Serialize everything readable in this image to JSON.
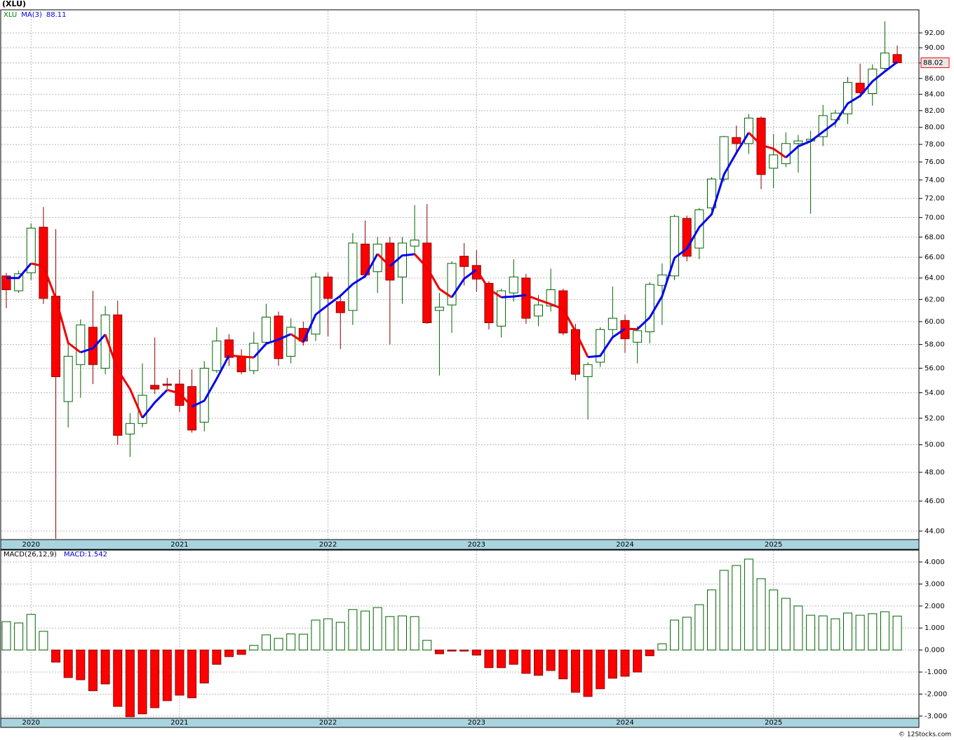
{
  "chart_data": [
    {
      "type": "candlestick",
      "title": "(XLU)",
      "categories": [
        null,
        null,
        "2020",
        null,
        null,
        null,
        null,
        null,
        null,
        null,
        null,
        null,
        null,
        null,
        "2021",
        null,
        null,
        null,
        null,
        null,
        null,
        null,
        null,
        null,
        null,
        null,
        "2022",
        null,
        null,
        null,
        null,
        null,
        null,
        null,
        null,
        null,
        null,
        null,
        "2023",
        null,
        null,
        null,
        null,
        null,
        null,
        null,
        null,
        null,
        null,
        null,
        "2024",
        null,
        null,
        null,
        null,
        null,
        null,
        null,
        null,
        null,
        null,
        null,
        "2025",
        null,
        null,
        null,
        null,
        null,
        null,
        null,
        null,
        null,
        null
      ],
      "series": [
        {
          "name": "XLU",
          "up_color": "#006400",
          "down_color": "#ff0000",
          "open": [
            64.2,
            62.8,
            64.5,
            69.0,
            62.3,
            53.3,
            56.3,
            59.5,
            56.0,
            60.6,
            50.8,
            51.6,
            54.6,
            54.7,
            54.7,
            54.5,
            51.7,
            55.8,
            58.4,
            57.0,
            55.8,
            58.2,
            60.5,
            57.0,
            59.4,
            58.9,
            64.1,
            61.8,
            61.0,
            67.3,
            64.6,
            67.4,
            64.1,
            67.1,
            67.4,
            61.0,
            61.5,
            66.1,
            65.2,
            63.5,
            59.6,
            62.6,
            64.0,
            60.5,
            61.4,
            62.8,
            59.3,
            55.3,
            56.5,
            59.3,
            60.1,
            58.2,
            59.1,
            63.3,
            64.2,
            69.9,
            66.9,
            71.0,
            74.1,
            78.8,
            78.1,
            81.1,
            75.3,
            75.8,
            78.1,
            78.4,
            78.9,
            80.9,
            81.6,
            85.4,
            84.1,
            87.3,
            89.1
          ],
          "high": [
            64.5,
            64.7,
            69.4,
            71.1,
            68.8,
            58.3,
            60.2,
            62.8,
            61.4,
            61.9,
            52.4,
            56.4,
            58.6,
            55.2,
            55.9,
            55.9,
            56.6,
            59.5,
            58.9,
            57.6,
            59.1,
            61.6,
            60.9,
            60.3,
            60.0,
            64.5,
            64.5,
            62.5,
            68.4,
            69.7,
            68.0,
            68.0,
            68.0,
            71.3,
            71.4,
            62.6,
            65.6,
            67.4,
            66.7,
            63.7,
            63.0,
            65.8,
            64.4,
            62.4,
            64.9,
            63.0,
            59.8,
            56.5,
            59.5,
            63.2,
            60.6,
            59.6,
            63.6,
            65.4,
            70.3,
            70.2,
            71.0,
            74.3,
            79.0,
            80.2,
            81.6,
            81.3,
            79.2,
            79.4,
            79.1,
            79.6,
            82.7,
            82.1,
            86.2,
            87.9,
            87.8,
            93.6,
            90.3
          ],
          "low": [
            61.2,
            62.6,
            63.8,
            61.6,
            43.5,
            51.3,
            53.6,
            54.7,
            55.5,
            50.0,
            49.1,
            51.3,
            53.9,
            54.3,
            52.5,
            50.9,
            51.0,
            55.6,
            56.2,
            55.5,
            55.5,
            57.9,
            56.2,
            56.4,
            57.9,
            58.3,
            58.7,
            57.6,
            59.7,
            64.0,
            62.6,
            58.0,
            61.6,
            66.3,
            59.8,
            55.4,
            59.0,
            63.3,
            62.7,
            59.3,
            58.6,
            61.8,
            59.8,
            59.6,
            60.9,
            58.8,
            55.0,
            51.9,
            56.1,
            58.5,
            57.3,
            56.4,
            58.1,
            59.7,
            63.8,
            65.6,
            65.8,
            70.7,
            73.8,
            77.1,
            76.9,
            73.0,
            73.1,
            75.4,
            74.8,
            70.4,
            77.8,
            80.0,
            80.4,
            83.6,
            82.6,
            86.9,
            87.9
          ],
          "close": [
            62.9,
            64.4,
            68.9,
            62.1,
            55.3,
            57.0,
            59.7,
            56.3,
            60.6,
            50.7,
            51.6,
            53.8,
            54.3,
            54.6,
            53.0,
            51.1,
            56.0,
            58.3,
            56.9,
            55.7,
            58.1,
            60.4,
            56.8,
            59.5,
            58.3,
            64.1,
            62.1,
            60.8,
            67.4,
            64.3,
            67.3,
            63.8,
            67.4,
            67.7,
            59.9,
            61.3,
            65.4,
            65.1,
            63.9,
            59.9,
            62.8,
            64.1,
            60.3,
            61.5,
            62.9,
            59.0,
            55.5,
            56.3,
            59.3,
            60.3,
            58.5,
            59.2,
            63.4,
            64.3,
            70.1,
            66.1,
            70.8,
            74.1,
            78.9,
            78.1,
            81.1,
            74.6,
            76.8,
            78.1,
            78.4,
            78.6,
            81.4,
            81.7,
            85.5,
            84.2,
            87.2,
            89.3,
            88.02
          ]
        },
        {
          "name": "MA(3)",
          "type": "line",
          "color": "#0000ee",
          "rising_color": "#0000ee",
          "falling_color": "#ee0000",
          "values": [
            64.0,
            64.0,
            65.4,
            65.13,
            62.1,
            58.13,
            57.33,
            57.67,
            58.87,
            55.87,
            54.3,
            52.03,
            53.23,
            54.23,
            53.97,
            52.9,
            53.37,
            55.13,
            57.07,
            56.97,
            56.9,
            58.07,
            58.43,
            58.9,
            58.2,
            60.63,
            61.5,
            62.33,
            63.43,
            64.17,
            66.33,
            65.13,
            66.17,
            66.3,
            65.0,
            62.97,
            62.2,
            63.93,
            64.8,
            62.97,
            62.2,
            62.27,
            62.4,
            61.97,
            61.57,
            61.13,
            59.13,
            56.93,
            57.03,
            58.63,
            59.37,
            59.33,
            60.37,
            62.3,
            65.93,
            66.83,
            69.0,
            70.33,
            74.6,
            77.03,
            79.37,
            77.93,
            77.5,
            76.5,
            77.77,
            78.37,
            79.47,
            80.57,
            82.87,
            83.8,
            85.63,
            86.9,
            88.11
          ]
        }
      ],
      "ylim": [
        43.45,
        95.2
      ],
      "log_scale": true,
      "grid": true,
      "yticks": [
        {
          "value": 44,
          "label": "44.00"
        },
        {
          "value": 46,
          "label": "46.00"
        },
        {
          "value": 48,
          "label": "48.00"
        },
        {
          "value": 50,
          "label": "50.00"
        },
        {
          "value": 52,
          "label": "52.00"
        },
        {
          "value": 54,
          "label": "54.00"
        },
        {
          "value": 56,
          "label": "56.00"
        },
        {
          "value": 58,
          "label": "58.00"
        },
        {
          "value": 60,
          "label": "60.00"
        },
        {
          "value": 62,
          "label": "62.00"
        },
        {
          "value": 64,
          "label": "64.00"
        },
        {
          "value": 66,
          "label": "66.00"
        },
        {
          "value": 68,
          "label": "68.00"
        },
        {
          "value": 70,
          "label": "70.00"
        },
        {
          "value": 72,
          "label": "72.00"
        },
        {
          "value": 74,
          "label": "74.00"
        },
        {
          "value": 76,
          "label": "76.00"
        },
        {
          "value": 78,
          "label": "78.00"
        },
        {
          "value": 80,
          "label": "80.00"
        },
        {
          "value": 82,
          "label": "82.00"
        },
        {
          "value": 84,
          "label": "84.00"
        },
        {
          "value": 86,
          "label": "86.00"
        },
        {
          "value": 88,
          "label": "88.00"
        },
        {
          "value": 90,
          "label": "90.00"
        },
        {
          "value": 92,
          "label": "92.00"
        }
      ]
    },
    {
      "type": "bar",
      "title": "MACD(26,12,9)",
      "categories": [
        null,
        null,
        "2020",
        null,
        null,
        null,
        null,
        null,
        null,
        null,
        null,
        null,
        null,
        null,
        "2021",
        null,
        null,
        null,
        null,
        null,
        null,
        null,
        null,
        null,
        null,
        null,
        "2022",
        null,
        null,
        null,
        null,
        null,
        null,
        null,
        null,
        null,
        null,
        null,
        "2023",
        null,
        null,
        null,
        null,
        null,
        null,
        null,
        null,
        null,
        null,
        null,
        "2024",
        null,
        null,
        null,
        null,
        null,
        null,
        null,
        null,
        null,
        null,
        null,
        "2025",
        null,
        null,
        null,
        null,
        null,
        null,
        null,
        null,
        null,
        null
      ],
      "series": [
        {
          "name": "MACD:",
          "color": "#0000cc",
          "positive_color": "#006400",
          "negative_color": "#ff0000",
          "values": [
            1.29,
            1.23,
            1.62,
            0.85,
            -0.55,
            -1.25,
            -1.35,
            -1.85,
            -1.54,
            -2.56,
            -3.03,
            -2.9,
            -2.62,
            -2.3,
            -2.05,
            -2.17,
            -1.5,
            -0.65,
            -0.3,
            -0.2,
            0.21,
            0.69,
            0.53,
            0.73,
            0.72,
            1.36,
            1.42,
            1.26,
            1.84,
            1.77,
            1.93,
            1.52,
            1.55,
            1.52,
            0.44,
            -0.17,
            -0.04,
            -0.04,
            -0.23,
            -0.8,
            -0.8,
            -0.65,
            -1.06,
            -1.15,
            -0.93,
            -1.31,
            -1.92,
            -2.11,
            -1.76,
            -1.28,
            -1.19,
            -1.0,
            -0.26,
            0.28,
            1.36,
            1.49,
            2.06,
            2.73,
            3.62,
            3.84,
            4.13,
            3.24,
            2.73,
            2.35,
            2.0,
            1.58,
            1.55,
            1.42,
            1.68,
            1.58,
            1.65,
            1.74,
            1.542
          ]
        }
      ],
      "ylim": [
        -3.1,
        4.54
      ],
      "grid": true,
      "yticks": [
        {
          "value": -3,
          "label": "-3.000"
        },
        {
          "value": -2,
          "label": "-2.000"
        },
        {
          "value": -1,
          "label": "-1.000"
        },
        {
          "value": 0,
          "label": "0.000"
        },
        {
          "value": 1,
          "label": "1.000"
        },
        {
          "value": 2,
          "label": "2.000"
        },
        {
          "value": 3,
          "label": "3.000"
        },
        {
          "value": 4,
          "label": "4.000"
        }
      ]
    }
  ],
  "footer": "© 12Stocks.com"
}
